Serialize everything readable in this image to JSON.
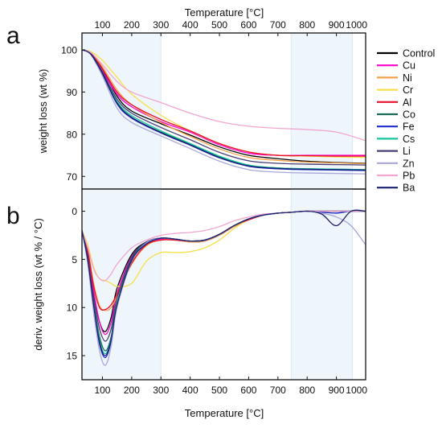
{
  "figure": {
    "top_xlabel": "Temperature [°C]",
    "bottom_xlabel": "Temperature [°C]",
    "panel_a_letter": "a",
    "panel_b_letter": "b"
  },
  "colors": {
    "Control": "#000000",
    "Cu": "#ff00cc",
    "Ni": "#f4a24a",
    "Cr": "#f6e04a",
    "Al": "#e8112d",
    "Co": "#1b6b58",
    "Fe": "#1f2ad1",
    "Cs": "#14c79a",
    "Li": "#4a3f72",
    "Zn": "#a9a7d8",
    "Pb": "#f2a6cf",
    "Ba": "#1a2170",
    "shade": "#eef5fb"
  },
  "legend": {
    "position": "right",
    "entries": [
      "Control",
      "Cu",
      "Ni",
      "Cr",
      "Al",
      "Co",
      "Fe",
      "Cs",
      "Li",
      "Zn",
      "Pb",
      "Ba"
    ]
  },
  "chart_data": [
    {
      "type": "line",
      "panel": "a",
      "title": "",
      "xlabel": "Temperature [°C]",
      "ylabel": "weight loss (wt %)",
      "xlim": [
        30,
        1000
      ],
      "ylim": [
        67,
        104
      ],
      "xticks": [
        100,
        200,
        300,
        400,
        500,
        600,
        700,
        800,
        900,
        1000
      ],
      "yticks": [
        70,
        80,
        90,
        100
      ],
      "shaded_ranges": [
        [
          30,
          300
        ],
        [
          745,
          955
        ]
      ],
      "grid": false,
      "series": [
        {
          "name": "Control",
          "x": [
            30,
            60,
            100,
            150,
            200,
            300,
            400,
            500,
            600,
            700,
            800,
            900,
            1000
          ],
          "y": [
            100,
            99.3,
            95.5,
            89.0,
            85.5,
            82.5,
            79.8,
            77.0,
            75.0,
            74.2,
            73.6,
            73.3,
            73.1
          ]
        },
        {
          "name": "Cu",
          "x": [
            30,
            60,
            100,
            150,
            200,
            300,
            400,
            500,
            600,
            700,
            800,
            900,
            1000
          ],
          "y": [
            100,
            99.2,
            95.0,
            89.5,
            86.5,
            83.0,
            80.5,
            77.5,
            75.5,
            75.0,
            75.0,
            75.0,
            75.0
          ]
        },
        {
          "name": "Ni",
          "x": [
            30,
            60,
            100,
            150,
            200,
            300,
            400,
            500,
            600,
            700,
            800,
            900,
            1000
          ],
          "y": [
            100,
            99.3,
            96.0,
            90.5,
            87.0,
            82.8,
            79.5,
            76.5,
            74.5,
            73.8,
            73.4,
            73.2,
            73.0
          ]
        },
        {
          "name": "Cr",
          "x": [
            30,
            60,
            100,
            150,
            200,
            300,
            400,
            500,
            600,
            700,
            800,
            900,
            1000
          ],
          "y": [
            100,
            99.6,
            97.5,
            93.5,
            89.5,
            84.5,
            80.8,
            77.8,
            75.8,
            75.0,
            74.8,
            74.6,
            74.5
          ]
        },
        {
          "name": "Al",
          "x": [
            30,
            60,
            100,
            150,
            200,
            300,
            400,
            500,
            600,
            700,
            800,
            900,
            1000
          ],
          "y": [
            100,
            99.2,
            95.5,
            90.0,
            87.0,
            83.5,
            80.8,
            77.8,
            75.8,
            75.0,
            74.9,
            74.8,
            74.8
          ]
        },
        {
          "name": "Co",
          "x": [
            30,
            60,
            100,
            150,
            200,
            300,
            400,
            500,
            600,
            700,
            800,
            900,
            1000
          ],
          "y": [
            100,
            99.0,
            94.5,
            87.5,
            84.0,
            80.5,
            77.6,
            74.6,
            72.6,
            72.0,
            71.8,
            71.7,
            71.6
          ]
        },
        {
          "name": "Fe",
          "x": [
            30,
            60,
            100,
            150,
            200,
            300,
            400,
            500,
            600,
            700,
            800,
            900,
            1000
          ],
          "y": [
            100,
            99.0,
            94.3,
            87.2,
            83.8,
            80.3,
            77.4,
            74.4,
            72.4,
            71.8,
            71.6,
            71.5,
            71.4
          ]
        },
        {
          "name": "Cs",
          "x": [
            30,
            60,
            100,
            150,
            200,
            300,
            400,
            500,
            600,
            700,
            800,
            900,
            1000
          ],
          "y": [
            100,
            99.0,
            94.6,
            87.8,
            84.4,
            80.8,
            77.8,
            74.8,
            72.7,
            72.0,
            71.8,
            71.7,
            71.6
          ]
        },
        {
          "name": "Li",
          "x": [
            30,
            60,
            100,
            150,
            200,
            300,
            400,
            500,
            600,
            700,
            800,
            900,
            1000
          ],
          "y": [
            100,
            99.1,
            94.8,
            88.3,
            85.0,
            81.6,
            78.7,
            75.7,
            73.7,
            73.1,
            72.9,
            72.8,
            72.7
          ]
        },
        {
          "name": "Zn",
          "x": [
            30,
            60,
            100,
            150,
            200,
            300,
            400,
            500,
            600,
            700,
            800,
            900,
            1000
          ],
          "y": [
            100,
            98.9,
            93.8,
            86.2,
            82.8,
            79.6,
            76.6,
            73.6,
            71.6,
            71.0,
            70.8,
            70.7,
            70.6
          ]
        },
        {
          "name": "Pb",
          "x": [
            30,
            60,
            100,
            150,
            200,
            300,
            400,
            500,
            600,
            700,
            800,
            900,
            1000
          ],
          "y": [
            100,
            99.4,
            96.5,
            92.5,
            90.0,
            87.5,
            85.0,
            83.0,
            81.9,
            81.4,
            81.1,
            80.5,
            78.5
          ]
        },
        {
          "name": "Ba",
          "x": [
            30,
            60,
            100,
            150,
            200,
            300,
            400,
            500,
            600,
            700,
            800,
            900,
            1000
          ],
          "y": [
            100,
            99.0,
            94.4,
            87.4,
            84.0,
            80.4,
            77.5,
            74.5,
            72.5,
            71.9,
            71.7,
            71.6,
            71.5
          ]
        }
      ]
    },
    {
      "type": "line",
      "panel": "b",
      "title": "",
      "xlabel": "Temperature [°C]",
      "ylabel": "deriv. weight loss (wt % / °C)",
      "xlim": [
        30,
        1000
      ],
      "ylim": [
        17.5,
        -2.3
      ],
      "y_inverted": true,
      "xticks": [
        100,
        200,
        300,
        400,
        500,
        600,
        700,
        800,
        900,
        1000
      ],
      "yticks": [
        0,
        5,
        10,
        15
      ],
      "shaded_ranges": [
        [
          30,
          300
        ],
        [
          745,
          955
        ]
      ],
      "grid": false,
      "series": [
        {
          "name": "Control",
          "x": [
            30,
            50,
            70,
            90,
            110,
            130,
            150,
            200,
            250,
            300,
            350,
            400,
            450,
            500,
            550,
            600,
            650,
            700,
            750,
            800,
            850,
            900,
            950,
            1000
          ],
          "y": [
            2.0,
            4.5,
            8.5,
            11.5,
            12.5,
            11.0,
            8.0,
            4.5,
            3.2,
            2.8,
            2.9,
            3.1,
            3.0,
            2.4,
            1.6,
            0.9,
            0.4,
            0.2,
            0.1,
            0.0,
            0.0,
            0.0,
            0.0,
            0.0
          ]
        },
        {
          "name": "Cu",
          "x": [
            30,
            50,
            70,
            90,
            110,
            130,
            150,
            200,
            250,
            300,
            350,
            400,
            450,
            500,
            550,
            600,
            650,
            700,
            750,
            800,
            850,
            900,
            950,
            1000
          ],
          "y": [
            2.0,
            4.5,
            8.3,
            11.5,
            12.8,
            11.5,
            8.5,
            4.7,
            3.3,
            2.9,
            3.0,
            3.2,
            3.1,
            2.5,
            1.6,
            0.9,
            0.4,
            0.2,
            0.1,
            0.0,
            0.0,
            0.0,
            0.0,
            0.0
          ]
        },
        {
          "name": "Ni",
          "x": [
            30,
            50,
            70,
            90,
            110,
            130,
            150,
            200,
            250,
            300,
            350,
            400,
            450,
            500,
            550,
            600,
            650,
            700,
            750,
            800,
            850,
            900,
            950,
            1000
          ],
          "y": [
            2.0,
            4.0,
            7.5,
            9.8,
            10.3,
            10.0,
            8.8,
            5.5,
            3.6,
            3.0,
            3.0,
            3.2,
            3.1,
            2.5,
            1.6,
            0.9,
            0.4,
            0.2,
            0.1,
            0.0,
            0.0,
            0.0,
            0.0,
            0.0
          ]
        },
        {
          "name": "Cr",
          "x": [
            30,
            50,
            70,
            90,
            110,
            130,
            150,
            200,
            250,
            300,
            350,
            400,
            450,
            500,
            550,
            600,
            650,
            700,
            750,
            800,
            850,
            900,
            950,
            1000
          ],
          "y": [
            2.0,
            3.5,
            5.8,
            7.0,
            7.2,
            7.5,
            7.8,
            7.5,
            5.2,
            4.3,
            4.3,
            4.2,
            3.8,
            3.0,
            1.8,
            0.9,
            0.4,
            0.2,
            0.1,
            0.0,
            0.0,
            0.0,
            0.0,
            0.0
          ]
        },
        {
          "name": "Al",
          "x": [
            30,
            50,
            70,
            90,
            110,
            130,
            150,
            200,
            250,
            300,
            350,
            400,
            450,
            500,
            550,
            600,
            650,
            700,
            750,
            800,
            850,
            900,
            950,
            1000
          ],
          "y": [
            2.0,
            4.2,
            7.8,
            10.0,
            10.2,
            9.7,
            8.6,
            5.4,
            3.5,
            3.0,
            3.0,
            3.1,
            3.0,
            2.4,
            1.5,
            0.9,
            0.4,
            0.2,
            0.1,
            0.0,
            0.0,
            0.0,
            0.0,
            0.0
          ]
        },
        {
          "name": "Co",
          "x": [
            30,
            50,
            70,
            90,
            110,
            130,
            150,
            200,
            250,
            300,
            350,
            400,
            450,
            500,
            550,
            600,
            650,
            700,
            750,
            800,
            850,
            900,
            950,
            1000
          ],
          "y": [
            2.0,
            5.0,
            9.5,
            13.0,
            14.5,
            13.0,
            9.5,
            5.0,
            3.3,
            2.8,
            2.9,
            3.1,
            3.0,
            2.4,
            1.5,
            0.8,
            0.4,
            0.2,
            0.1,
            0.0,
            0.0,
            0.0,
            0.0,
            0.0
          ]
        },
        {
          "name": "Fe",
          "x": [
            30,
            50,
            70,
            90,
            110,
            130,
            150,
            200,
            250,
            300,
            350,
            400,
            450,
            500,
            550,
            600,
            650,
            700,
            750,
            800,
            850,
            900,
            950,
            1000
          ],
          "y": [
            2.0,
            5.2,
            10.0,
            13.8,
            15.2,
            13.5,
            9.8,
            5.2,
            3.4,
            2.8,
            2.9,
            3.1,
            3.0,
            2.4,
            1.5,
            0.8,
            0.4,
            0.2,
            0.1,
            0.0,
            0.1,
            0.2,
            0.0,
            0.0
          ]
        },
        {
          "name": "Cs",
          "x": [
            30,
            50,
            70,
            90,
            110,
            130,
            150,
            200,
            250,
            300,
            350,
            400,
            450,
            500,
            550,
            600,
            650,
            700,
            750,
            800,
            850,
            900,
            950,
            1000
          ],
          "y": [
            2.0,
            5.0,
            9.7,
            13.4,
            14.8,
            13.2,
            9.6,
            5.1,
            3.3,
            2.8,
            2.9,
            3.1,
            3.0,
            2.4,
            1.5,
            0.8,
            0.4,
            0.2,
            0.1,
            0.0,
            0.0,
            0.0,
            0.0,
            0.0
          ]
        },
        {
          "name": "Li",
          "x": [
            30,
            50,
            70,
            90,
            110,
            130,
            150,
            200,
            250,
            300,
            350,
            400,
            450,
            500,
            550,
            600,
            650,
            700,
            750,
            800,
            850,
            900,
            950,
            1000
          ],
          "y": [
            2.0,
            4.8,
            9.0,
            12.2,
            13.5,
            12.2,
            9.0,
            4.8,
            3.2,
            2.8,
            2.9,
            3.1,
            3.0,
            2.4,
            1.5,
            0.8,
            0.4,
            0.2,
            0.1,
            0.0,
            0.0,
            0.0,
            0.0,
            0.0
          ]
        },
        {
          "name": "Zn",
          "x": [
            30,
            50,
            70,
            90,
            110,
            130,
            150,
            200,
            250,
            300,
            350,
            400,
            450,
            500,
            550,
            600,
            650,
            700,
            750,
            800,
            850,
            900,
            950,
            1000
          ],
          "y": [
            2.0,
            5.5,
            10.5,
            14.5,
            16.0,
            14.0,
            10.0,
            5.2,
            3.3,
            2.8,
            2.9,
            3.1,
            3.0,
            2.4,
            1.5,
            0.8,
            0.4,
            0.2,
            0.1,
            0.0,
            0.2,
            0.6,
            1.5,
            3.5
          ]
        },
        {
          "name": "Pb",
          "x": [
            30,
            50,
            70,
            90,
            110,
            130,
            150,
            200,
            250,
            300,
            350,
            400,
            450,
            500,
            550,
            600,
            650,
            700,
            750,
            800,
            850,
            900,
            950,
            1000
          ],
          "y": [
            2.0,
            3.8,
            6.0,
            7.0,
            7.2,
            6.5,
            5.5,
            3.8,
            3.0,
            2.5,
            2.3,
            2.2,
            2.0,
            1.6,
            1.0,
            0.6,
            0.3,
            0.2,
            0.1,
            0.0,
            0.0,
            0.0,
            0.0,
            0.0
          ]
        },
        {
          "name": "Ba",
          "x": [
            30,
            50,
            70,
            90,
            110,
            130,
            150,
            200,
            250,
            300,
            350,
            400,
            450,
            500,
            550,
            600,
            650,
            700,
            750,
            800,
            850,
            900,
            950,
            1000
          ],
          "y": [
            2.0,
            5.1,
            9.8,
            13.6,
            15.0,
            13.3,
            9.7,
            5.1,
            3.4,
            2.8,
            2.9,
            3.1,
            3.0,
            2.4,
            1.5,
            0.8,
            0.4,
            0.2,
            0.1,
            0.0,
            0.3,
            1.5,
            0.0,
            0.0
          ]
        }
      ]
    }
  ]
}
